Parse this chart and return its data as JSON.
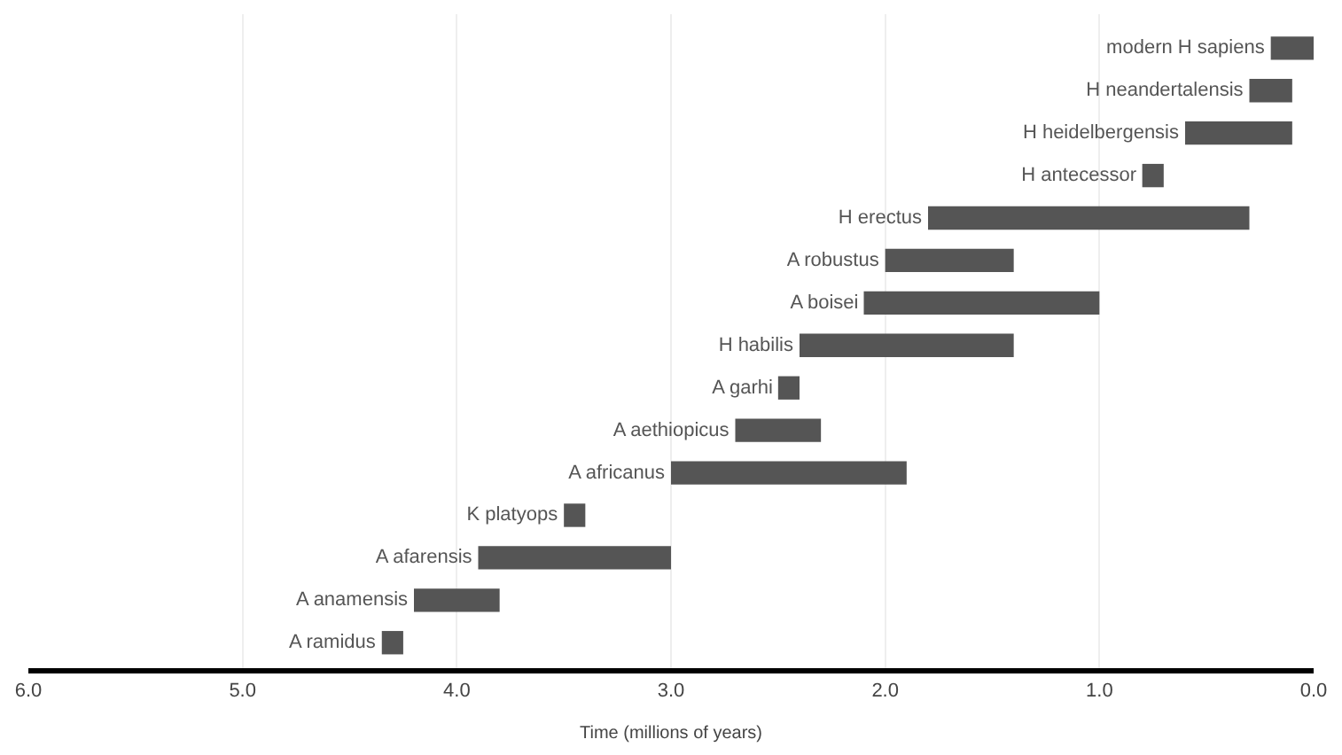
{
  "chart_data": {
    "type": "bar",
    "orientation": "horizontal",
    "xlabel": "Time (millions of years)",
    "categories": [
      "modern H sapiens",
      "H neandertalensis",
      "H heidelbergensis",
      "H antecessor",
      "H erectus",
      "A robustus",
      "A boisei",
      "H habilis",
      "A garhi",
      "A aethiopicus",
      "A africanus",
      "K platyops",
      "A afarensis",
      "A anamensis",
      "A ramidus"
    ],
    "base": [
      0.0,
      0.1,
      0.1,
      0.7,
      0.3,
      1.4,
      1.0,
      1.4,
      2.4,
      2.3,
      1.9,
      3.4,
      3.0,
      3.8,
      4.25
    ],
    "values": [
      0.2,
      0.2,
      0.5,
      0.1,
      1.5,
      0.6,
      1.1,
      1.0,
      0.1,
      0.4,
      1.1,
      0.1,
      0.9,
      0.4,
      0.1
    ],
    "color": "#555555",
    "xlim": [
      6.0,
      0.0
    ],
    "xticks": [
      {
        "value": 6,
        "label": "6.0"
      },
      {
        "value": 5,
        "label": "5.0"
      },
      {
        "value": 4,
        "label": "4.0"
      },
      {
        "value": 3,
        "label": "3.0"
      },
      {
        "value": 2,
        "label": "2.0"
      },
      {
        "value": 1,
        "label": "1.0"
      },
      {
        "value": 0,
        "label": "0.0"
      }
    ],
    "grid": "x",
    "tick_labels": "x"
  }
}
